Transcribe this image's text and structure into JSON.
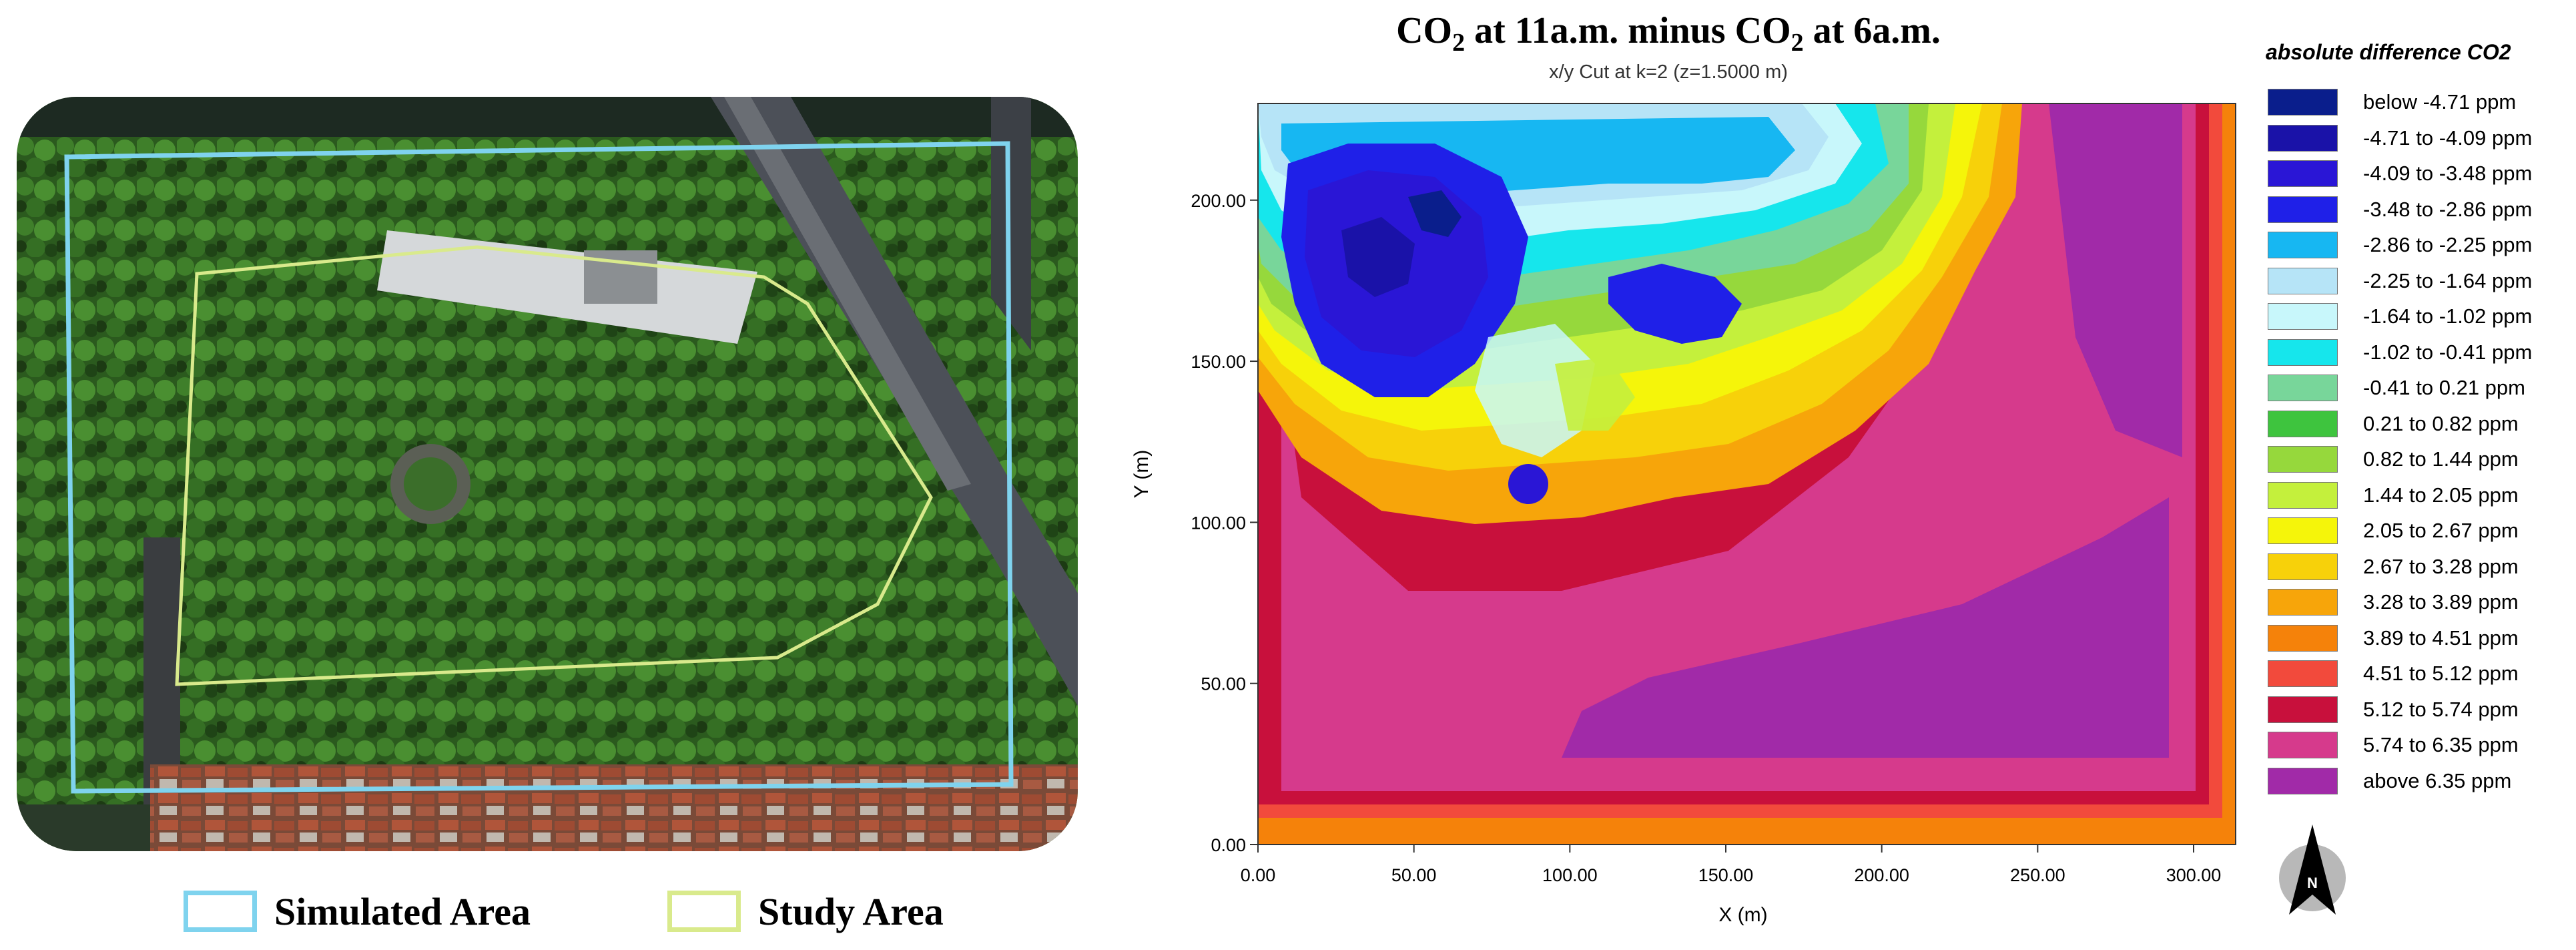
{
  "left_panel": {
    "map_image": "satellite-aerial-photo",
    "legend": [
      {
        "label": "Simulated Area",
        "color": "#7fd3ee"
      },
      {
        "label": "Study Area",
        "color": "#d9ea8c"
      }
    ]
  },
  "right_panel": {
    "title_parts": [
      "CO",
      "2",
      " at 11a.m. minus CO",
      "2",
      " at 6a.m."
    ],
    "subtitle": "x/y Cut at k=2 (z=1.5000 m)",
    "x_axis": {
      "label": "X (m)",
      "ticks": [
        "0.00",
        "50.00",
        "100.00",
        "150.00",
        "200.00",
        "250.00",
        "300.00"
      ],
      "range": [
        0,
        300
      ]
    },
    "y_axis": {
      "label": "Y (m)",
      "ticks": [
        "0.00",
        "50.00",
        "100.00",
        "150.00",
        "200.00"
      ],
      "range": [
        0,
        230
      ]
    },
    "legend_title": "absolute difference CO2",
    "legend": [
      {
        "label": "below -4.71 ppm",
        "color": "#0a1e8c"
      },
      {
        "label": "-4.71 to -4.09 ppm",
        "color": "#1a12a8"
      },
      {
        "label": "-4.09 to -3.48 ppm",
        "color": "#2a16d6"
      },
      {
        "label": "-3.48 to -2.86 ppm",
        "color": "#1f20e8"
      },
      {
        "label": "-2.86 to -2.25 ppm",
        "color": "#17b7f2"
      },
      {
        "label": "-2.25 to -1.64 ppm",
        "color": "#b6e4f7"
      },
      {
        "label": "-1.64 to -1.02 ppm",
        "color": "#c8f7fb"
      },
      {
        "label": "-1.02 to -0.41 ppm",
        "color": "#16e6ec"
      },
      {
        "label": "-0.41 to 0.21 ppm",
        "color": "#78d69a"
      },
      {
        "label": "0.21 to 0.82 ppm",
        "color": "#3ec43e"
      },
      {
        "label": "0.82 to 1.44 ppm",
        "color": "#96d83c"
      },
      {
        "label": "1.44 to 2.05 ppm",
        "color": "#c4f03c"
      },
      {
        "label": "2.05 to 2.67 ppm",
        "color": "#f5f50a"
      },
      {
        "label": "2.67 to 3.28 ppm",
        "color": "#f7d10a"
      },
      {
        "label": "3.28 to 3.89 ppm",
        "color": "#f7a50a"
      },
      {
        "label": "3.89 to 4.51 ppm",
        "color": "#f5820a"
      },
      {
        "label": "4.51 to 5.12 ppm",
        "color": "#f24a3c"
      },
      {
        "label": "5.12 to 5.74 ppm",
        "color": "#c8103c"
      },
      {
        "label": "5.74 to 6.35 ppm",
        "color": "#d63a8c"
      },
      {
        "label": "above 6.35 ppm",
        "color": "#a12aa8"
      }
    ],
    "north_arrow": {
      "icon": "north-arrow-icon",
      "letter": "N"
    }
  }
}
